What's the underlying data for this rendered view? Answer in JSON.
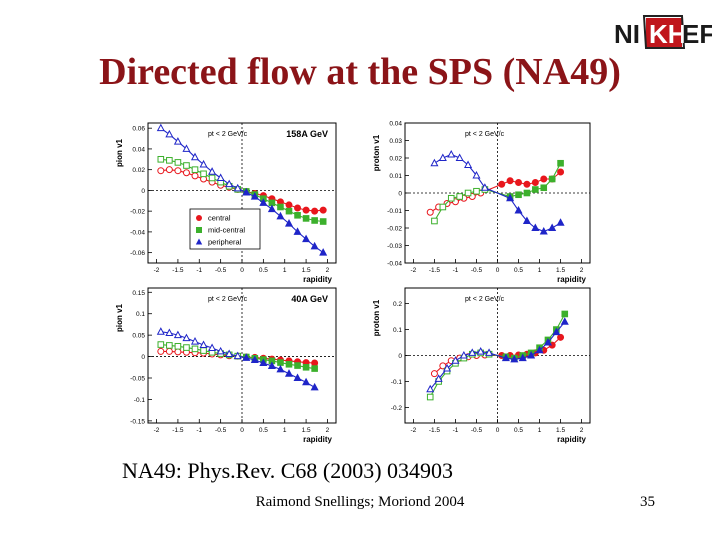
{
  "logo": {
    "text_part1": "NI",
    "text_part2": "KH",
    "text_part3": "EF"
  },
  "slide": {
    "title": "Directed flow at the SPS (NA49)",
    "reference": "NA49: Phys.Rev. C68 (2003) 034903",
    "footer": "Raimond Snellings; Moriond 2004",
    "page_number": "35"
  },
  "colors": {
    "title": "#8b1418",
    "central": "#e8171d",
    "midcentral": "#3cb02c",
    "peripheral": "#1f25c8"
  },
  "chart_data": [
    {
      "type": "scatter",
      "id": "pion-158",
      "energy_label": "158A  GeV",
      "pt_label": "pt < 2 GeV/c",
      "ylabel": "pion v1",
      "xlabel": "rapidity",
      "xlim": [
        -2.2,
        2.2
      ],
      "ylim": [
        -0.07,
        0.065
      ],
      "yticks": [
        0.06,
        0.04,
        0.02,
        0,
        -0.02,
        -0.04,
        -0.06
      ],
      "ytick_labels": [
        "0.06",
        "0.04",
        "0.02",
        "0",
        "-0.02",
        "-0.04",
        "-0.06"
      ],
      "xticks": [
        -2,
        -1.5,
        -1,
        -0.5,
        0,
        0.5,
        1,
        1.5,
        2
      ],
      "xtick_labels": [
        "-2",
        "-1.5",
        "-1",
        "-0.5",
        "0",
        "0.5",
        "1",
        "1.5",
        "2"
      ],
      "legend": [
        "central",
        "mid-central",
        "peripheral"
      ],
      "series": [
        {
          "name": "central",
          "color": "#e8171d",
          "marker": "circle",
          "x": [
            -1.9,
            -1.7,
            -1.5,
            -1.3,
            -1.1,
            -0.9,
            -0.7,
            -0.5,
            -0.3,
            -0.1,
            0.1,
            0.3,
            0.5,
            0.7,
            0.9,
            1.1,
            1.3,
            1.5,
            1.7,
            1.9
          ],
          "y": [
            0.019,
            0.02,
            0.019,
            0.017,
            0.014,
            0.011,
            0.008,
            0.005,
            0.003,
            0.001,
            -0.001,
            -0.003,
            -0.005,
            -0.008,
            -0.011,
            -0.014,
            -0.017,
            -0.019,
            -0.02,
            -0.019
          ]
        },
        {
          "name": "mid-central",
          "color": "#3cb02c",
          "marker": "square",
          "x": [
            -1.9,
            -1.7,
            -1.5,
            -1.3,
            -1.1,
            -0.9,
            -0.7,
            -0.5,
            -0.3,
            -0.1,
            0.1,
            0.3,
            0.5,
            0.7,
            0.9,
            1.1,
            1.3,
            1.5,
            1.7,
            1.9
          ],
          "y": [
            0.03,
            0.029,
            0.027,
            0.024,
            0.02,
            0.016,
            0.012,
            0.008,
            0.004,
            0.001,
            -0.001,
            -0.004,
            -0.008,
            -0.012,
            -0.016,
            -0.02,
            -0.024,
            -0.027,
            -0.029,
            -0.03
          ]
        },
        {
          "name": "peripheral",
          "color": "#1f25c8",
          "marker": "triangle",
          "x": [
            -1.9,
            -1.7,
            -1.5,
            -1.3,
            -1.1,
            -0.9,
            -0.7,
            -0.5,
            -0.3,
            -0.1,
            0.1,
            0.3,
            0.5,
            0.7,
            0.9,
            1.1,
            1.3,
            1.5,
            1.7,
            1.9
          ],
          "y": [
            0.06,
            0.054,
            0.047,
            0.04,
            0.032,
            0.025,
            0.018,
            0.012,
            0.006,
            0.002,
            -0.002,
            -0.006,
            -0.012,
            -0.018,
            -0.025,
            -0.032,
            -0.04,
            -0.047,
            -0.054,
            -0.06
          ]
        }
      ]
    },
    {
      "type": "scatter",
      "id": "proton-158",
      "energy_label": "",
      "pt_label": "pt < 2 GeV/c",
      "ylabel": "proton v1",
      "xlabel": "rapidity",
      "xlim": [
        -2.2,
        2.2
      ],
      "ylim": [
        -0.04,
        0.04
      ],
      "yticks": [
        0.04,
        0.03,
        0.02,
        0.01,
        0,
        -0.01,
        -0.02,
        -0.03,
        -0.04
      ],
      "ytick_labels": [
        "0.04",
        "0.03",
        "0.02",
        "0.01",
        "0",
        "-0.01",
        "-0.02",
        "-0.03",
        "-0.04"
      ],
      "xticks": [
        -2,
        -1.5,
        -1,
        -0.5,
        0,
        0.5,
        1,
        1.5,
        2
      ],
      "xtick_labels": [
        "-2",
        "-1.5",
        "-1",
        "-0.5",
        "0",
        "0.5",
        "1",
        "1.5",
        "2"
      ],
      "legend": [],
      "series": [
        {
          "name": "central",
          "color": "#e8171d",
          "marker": "circle",
          "x": [
            -1.6,
            -1.4,
            -1.2,
            -1.0,
            -0.8,
            -0.6,
            -0.4,
            0.1,
            0.3,
            0.5,
            0.7,
            0.9,
            1.1,
            1.3,
            1.5
          ],
          "y": [
            -0.011,
            -0.008,
            -0.006,
            -0.005,
            -0.003,
            -0.002,
            0.0,
            0.005,
            0.007,
            0.006,
            0.005,
            0.006,
            0.008,
            0.008,
            0.012
          ]
        },
        {
          "name": "mid-central",
          "color": "#3cb02c",
          "marker": "square",
          "x": [
            -1.5,
            -1.3,
            -1.1,
            -0.9,
            -0.7,
            -0.5,
            -0.3,
            0.3,
            0.5,
            0.7,
            0.9,
            1.1,
            1.3,
            1.5
          ],
          "y": [
            -0.016,
            -0.008,
            -0.003,
            -0.002,
            0.0,
            0.001,
            0.002,
            -0.002,
            -0.001,
            0.0,
            0.002,
            0.003,
            0.008,
            0.017
          ]
        },
        {
          "name": "peripheral",
          "color": "#1f25c8",
          "marker": "triangle",
          "x": [
            -1.5,
            -1.3,
            -1.1,
            -0.9,
            -0.7,
            -0.5,
            -0.3,
            0.3,
            0.5,
            0.7,
            0.9,
            1.1,
            1.3,
            1.5
          ],
          "y": [
            0.017,
            0.02,
            0.022,
            0.02,
            0.016,
            0.01,
            0.003,
            -0.003,
            -0.01,
            -0.016,
            -0.02,
            -0.022,
            -0.02,
            -0.017
          ]
        }
      ]
    },
    {
      "type": "scatter",
      "id": "pion-40",
      "energy_label": "40A  GeV",
      "pt_label": "pt < 2 GeV/c",
      "ylabel": "pion v1",
      "xlabel": "rapidity",
      "xlim": [
        -2.2,
        2.2
      ],
      "ylim": [
        -0.155,
        0.16
      ],
      "yticks": [
        0.15,
        0.1,
        0.05,
        0,
        -0.05,
        -0.1,
        -0.15
      ],
      "ytick_labels": [
        "0.15",
        "0.1",
        "0.05",
        "0",
        "-0.05",
        "-0.1",
        "-0.15"
      ],
      "xticks": [
        -2,
        -1.5,
        -1,
        -0.5,
        0,
        0.5,
        1,
        1.5,
        2
      ],
      "xtick_labels": [
        "-2",
        "-1.5",
        "-1",
        "-0.5",
        "0",
        "0.5",
        "1",
        "1.5",
        "2"
      ],
      "legend": [],
      "series": [
        {
          "name": "central",
          "color": "#e8171d",
          "marker": "circle",
          "x": [
            -1.9,
            -1.7,
            -1.5,
            -1.3,
            -1.1,
            -0.9,
            -0.7,
            -0.5,
            -0.3,
            -0.1,
            0.1,
            0.3,
            0.5,
            0.7,
            0.9,
            1.1,
            1.3,
            1.5,
            1.7
          ],
          "y": [
            0.012,
            0.012,
            0.011,
            0.01,
            0.009,
            0.008,
            0.006,
            0.004,
            0.002,
            0.001,
            -0.001,
            -0.002,
            -0.004,
            -0.006,
            -0.008,
            -0.01,
            -0.012,
            -0.014,
            -0.015
          ]
        },
        {
          "name": "mid-central",
          "color": "#3cb02c",
          "marker": "square",
          "x": [
            -1.9,
            -1.7,
            -1.5,
            -1.3,
            -1.1,
            -0.9,
            -0.7,
            -0.5,
            -0.3,
            -0.1,
            0.1,
            0.3,
            0.5,
            0.7,
            0.9,
            1.1,
            1.3,
            1.5,
            1.7
          ],
          "y": [
            0.028,
            0.026,
            0.024,
            0.021,
            0.018,
            0.014,
            0.01,
            0.007,
            0.004,
            0.001,
            -0.001,
            -0.004,
            -0.007,
            -0.01,
            -0.014,
            -0.018,
            -0.021,
            -0.025,
            -0.028
          ]
        },
        {
          "name": "peripheral",
          "color": "#1f25c8",
          "marker": "triangle",
          "x": [
            -1.9,
            -1.7,
            -1.5,
            -1.3,
            -1.1,
            -0.9,
            -0.7,
            -0.5,
            -0.3,
            -0.1,
            0.1,
            0.3,
            0.5,
            0.7,
            0.9,
            1.1,
            1.3,
            1.5,
            1.7
          ],
          "y": [
            0.058,
            0.055,
            0.05,
            0.043,
            0.035,
            0.027,
            0.02,
            0.012,
            0.006,
            0.001,
            -0.003,
            -0.008,
            -0.015,
            -0.022,
            -0.03,
            -0.04,
            -0.05,
            -0.06,
            -0.072
          ]
        }
      ]
    },
    {
      "type": "scatter",
      "id": "proton-40",
      "energy_label": "",
      "pt_label": "pt < 2 GeV/c",
      "ylabel": "proton v1",
      "xlabel": "rapidity",
      "xlim": [
        -2.2,
        2.2
      ],
      "ylim": [
        -0.26,
        0.26
      ],
      "yticks": [
        0.2,
        0.1,
        0,
        -0.1,
        -0.2
      ],
      "ytick_labels": [
        "0.2",
        "0.1",
        "0",
        "-0.1",
        "-0.2"
      ],
      "xticks": [
        -2,
        -1.5,
        -1,
        -0.5,
        0,
        0.5,
        1,
        1.5,
        2
      ],
      "xtick_labels": [
        "-2",
        "-1.5",
        "-1",
        "-0.5",
        "0",
        "0.5",
        "1",
        "1.5",
        "2"
      ],
      "legend": [],
      "series": [
        {
          "name": "central",
          "color": "#e8171d",
          "marker": "circle",
          "x": [
            -1.5,
            -1.3,
            -1.1,
            -0.9,
            -0.7,
            -0.5,
            -0.3,
            0.1,
            0.3,
            0.5,
            0.7,
            0.9,
            1.1,
            1.3,
            1.5
          ],
          "y": [
            -0.07,
            -0.04,
            -0.02,
            -0.01,
            -0.005,
            0.0,
            0.002,
            0.0,
            0.0,
            0.002,
            0.005,
            0.01,
            0.02,
            0.04,
            0.07
          ]
        },
        {
          "name": "mid-central",
          "color": "#3cb02c",
          "marker": "square",
          "x": [
            -1.6,
            -1.4,
            -1.2,
            -1.0,
            -0.8,
            -0.6,
            -0.4,
            -0.2,
            0.2,
            0.4,
            0.6,
            0.8,
            1.0,
            1.2,
            1.4,
            1.6
          ],
          "y": [
            -0.16,
            -0.1,
            -0.06,
            -0.03,
            -0.01,
            0.005,
            0.01,
            0.005,
            -0.005,
            -0.01,
            0.0,
            0.01,
            0.03,
            0.06,
            0.1,
            0.16
          ]
        },
        {
          "name": "peripheral",
          "color": "#1f25c8",
          "marker": "triangle",
          "x": [
            -1.6,
            -1.4,
            -1.2,
            -1.0,
            -0.8,
            -0.6,
            -0.4,
            -0.2,
            0.2,
            0.4,
            0.6,
            0.8,
            1.0,
            1.2,
            1.4,
            1.6
          ],
          "y": [
            -0.13,
            -0.09,
            -0.05,
            -0.02,
            0.0,
            0.01,
            0.015,
            0.01,
            -0.01,
            -0.015,
            -0.01,
            0.0,
            0.02,
            0.05,
            0.09,
            0.13
          ]
        }
      ]
    }
  ]
}
